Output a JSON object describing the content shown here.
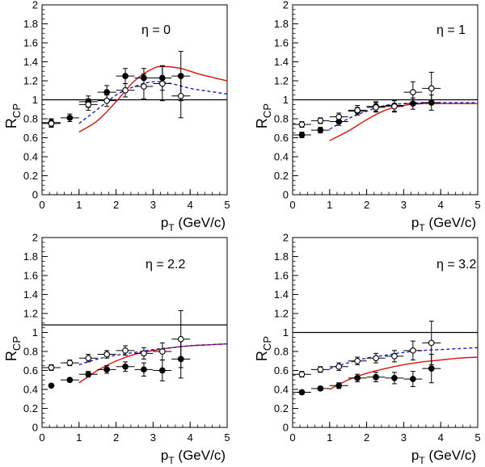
{
  "figure": {
    "ylabel_base": "R",
    "ylabel_sub": "CP",
    "xlabel_base": "p",
    "xlabel_sub": "T",
    "xlabel_unit": " (GeV/c)"
  },
  "colors": {
    "red_curve": "#e01010",
    "blue_curve": "#1a1ad6",
    "axis": "#000000"
  },
  "chart_data": [
    {
      "type": "scatter",
      "title": "η = 0",
      "xlim": [
        0,
        5
      ],
      "ylim": [
        0,
        2
      ],
      "x_ticks": [
        "0",
        "1",
        "2",
        "3",
        "4",
        "5"
      ],
      "y_ticks": [
        "0",
        "0.2",
        "0.4",
        "0.6",
        "0.8",
        "1",
        "1.2",
        "1.4",
        "1.6",
        "1.8",
        "2"
      ],
      "reference_line": 1.0,
      "series": [
        {
          "marker": "filled",
          "points": [
            {
              "x": 0.25,
              "y": 0.76,
              "xerr": 0.25,
              "yerr": 0.04
            },
            {
              "x": 0.75,
              "y": 0.81,
              "xerr": 0.25,
              "yerr": 0.04
            },
            {
              "x": 1.25,
              "y": 0.98,
              "xerr": 0.25,
              "yerr": 0.06
            },
            {
              "x": 1.75,
              "y": 1.08,
              "xerr": 0.25,
              "yerr": 0.07
            },
            {
              "x": 2.25,
              "y": 1.25,
              "xerr": 0.25,
              "yerr": 0.08
            },
            {
              "x": 2.75,
              "y": 1.23,
              "xerr": 0.25,
              "yerr": 0.1
            },
            {
              "x": 3.25,
              "y": 1.23,
              "xerr": 0.25,
              "yerr": 0.13
            },
            {
              "x": 3.75,
              "y": 1.25,
              "xerr": 0.25,
              "yerr": 0.26
            }
          ]
        },
        {
          "marker": "open",
          "points": [
            {
              "x": 0.25,
              "y": 0.75,
              "xerr": 0.25,
              "yerr": 0.04
            },
            {
              "x": 1.25,
              "y": 0.95,
              "xerr": 0.25,
              "yerr": 0.06
            },
            {
              "x": 1.75,
              "y": 0.99,
              "xerr": 0.25,
              "yerr": 0.06
            },
            {
              "x": 2.25,
              "y": 1.1,
              "xerr": 0.25,
              "yerr": 0.07
            },
            {
              "x": 2.75,
              "y": 1.14,
              "xerr": 0.25,
              "yerr": 0.13
            },
            {
              "x": 3.25,
              "y": 1.17,
              "xerr": 0.25,
              "yerr": 0.18
            },
            {
              "x": 3.75,
              "y": 1.04,
              "xerr": 0.25,
              "yerr": 0.23
            }
          ]
        }
      ],
      "curves": [
        {
          "color": "red",
          "style": "solid",
          "points": [
            [
              1,
              0.66
            ],
            [
              1.5,
              0.78
            ],
            [
              2,
              0.98
            ],
            [
              2.5,
              1.2
            ],
            [
              3,
              1.33
            ],
            [
              3.3,
              1.35
            ],
            [
              3.75,
              1.33
            ],
            [
              4.25,
              1.27
            ],
            [
              5,
              1.2
            ]
          ]
        },
        {
          "color": "blue",
          "style": "dashed",
          "points": [
            [
              1,
              0.75
            ],
            [
              1.5,
              0.9
            ],
            [
              2,
              1.05
            ],
            [
              2.5,
              1.14
            ],
            [
              3,
              1.19
            ],
            [
              3.5,
              1.17
            ],
            [
              4,
              1.12
            ],
            [
              4.5,
              1.09
            ],
            [
              5,
              1.06
            ]
          ]
        }
      ]
    },
    {
      "type": "scatter",
      "title": "η = 1",
      "xlim": [
        0,
        5
      ],
      "ylim": [
        0,
        2
      ],
      "x_ticks": [
        "0",
        "1",
        "2",
        "3",
        "4",
        "5"
      ],
      "y_ticks": [
        "0",
        "0.2",
        "0.4",
        "0.6",
        "0.8",
        "1",
        "1.2",
        "1.4",
        "1.6",
        "1.8",
        "2"
      ],
      "reference_line": 1.0,
      "series": [
        {
          "marker": "filled",
          "points": [
            {
              "x": 0.25,
              "y": 0.63,
              "xerr": 0.25,
              "yerr": 0.03
            },
            {
              "x": 0.75,
              "y": 0.68,
              "xerr": 0.25,
              "yerr": 0.03
            },
            {
              "x": 1.25,
              "y": 0.77,
              "xerr": 0.25,
              "yerr": 0.04
            },
            {
              "x": 1.75,
              "y": 0.88,
              "xerr": 0.25,
              "yerr": 0.04
            },
            {
              "x": 2.25,
              "y": 0.93,
              "xerr": 0.25,
              "yerr": 0.05
            },
            {
              "x": 2.75,
              "y": 0.94,
              "xerr": 0.25,
              "yerr": 0.06
            },
            {
              "x": 3.25,
              "y": 0.96,
              "xerr": 0.25,
              "yerr": 0.06
            },
            {
              "x": 3.75,
              "y": 0.97,
              "xerr": 0.25,
              "yerr": 0.08
            }
          ]
        },
        {
          "marker": "open",
          "points": [
            {
              "x": 0.25,
              "y": 0.74,
              "xerr": 0.25,
              "yerr": 0.03
            },
            {
              "x": 0.75,
              "y": 0.78,
              "xerr": 0.25,
              "yerr": 0.03
            },
            {
              "x": 1.25,
              "y": 0.82,
              "xerr": 0.25,
              "yerr": 0.04
            },
            {
              "x": 1.75,
              "y": 0.89,
              "xerr": 0.25,
              "yerr": 0.05
            },
            {
              "x": 2.25,
              "y": 0.92,
              "xerr": 0.25,
              "yerr": 0.05
            },
            {
              "x": 2.75,
              "y": 0.93,
              "xerr": 0.25,
              "yerr": 0.06
            },
            {
              "x": 3.25,
              "y": 1.08,
              "xerr": 0.25,
              "yerr": 0.11
            },
            {
              "x": 3.75,
              "y": 1.12,
              "xerr": 0.25,
              "yerr": 0.17
            }
          ]
        }
      ],
      "curves": [
        {
          "color": "red",
          "style": "solid",
          "points": [
            [
              1,
              0.57
            ],
            [
              1.5,
              0.67
            ],
            [
              2,
              0.79
            ],
            [
              2.5,
              0.89
            ],
            [
              3,
              0.94
            ],
            [
              3.5,
              0.96
            ],
            [
              4,
              0.96
            ],
            [
              5,
              0.96
            ]
          ]
        },
        {
          "color": "blue",
          "style": "dashed",
          "points": [
            [
              1,
              0.69
            ],
            [
              1.5,
              0.8
            ],
            [
              2,
              0.88
            ],
            [
              2.5,
              0.94
            ],
            [
              3,
              0.96
            ],
            [
              3.5,
              0.97
            ],
            [
              4,
              0.97
            ],
            [
              5,
              0.97
            ]
          ]
        }
      ]
    },
    {
      "type": "scatter",
      "title": "η = 2.2",
      "xlim": [
        0,
        5
      ],
      "ylim": [
        0,
        2
      ],
      "x_ticks": [
        "0",
        "1",
        "2",
        "3",
        "4",
        "5"
      ],
      "y_ticks": [
        "0",
        "0.2",
        "0.4",
        "0.6",
        "0.8",
        "1",
        "1.2",
        "1.4",
        "1.6",
        "1.8",
        "2"
      ],
      "reference_line": 1.08,
      "series": [
        {
          "marker": "filled",
          "points": [
            {
              "x": 0.25,
              "y": 0.44,
              "xerr": 0,
              "yerr": 0
            },
            {
              "x": 0.75,
              "y": 0.5,
              "xerr": 0.25,
              "yerr": 0.02
            },
            {
              "x": 1.25,
              "y": 0.56,
              "xerr": 0.25,
              "yerr": 0.03
            },
            {
              "x": 1.75,
              "y": 0.61,
              "xerr": 0.25,
              "yerr": 0.04
            },
            {
              "x": 2.25,
              "y": 0.64,
              "xerr": 0.25,
              "yerr": 0.05
            },
            {
              "x": 2.75,
              "y": 0.61,
              "xerr": 0.25,
              "yerr": 0.07
            },
            {
              "x": 3.25,
              "y": 0.6,
              "xerr": 0.25,
              "yerr": 0.11
            },
            {
              "x": 3.75,
              "y": 0.72,
              "xerr": 0.25,
              "yerr": 0.2
            }
          ]
        },
        {
          "marker": "open",
          "points": [
            {
              "x": 0.25,
              "y": 0.63,
              "xerr": 0.25,
              "yerr": 0.03
            },
            {
              "x": 0.75,
              "y": 0.68,
              "xerr": 0.25,
              "yerr": 0.03
            },
            {
              "x": 1.25,
              "y": 0.73,
              "xerr": 0.25,
              "yerr": 0.04
            },
            {
              "x": 1.75,
              "y": 0.77,
              "xerr": 0.25,
              "yerr": 0.04
            },
            {
              "x": 2.25,
              "y": 0.81,
              "xerr": 0.25,
              "yerr": 0.05
            },
            {
              "x": 2.75,
              "y": 0.78,
              "xerr": 0.25,
              "yerr": 0.06
            },
            {
              "x": 3.25,
              "y": 0.8,
              "xerr": 0.25,
              "yerr": 0.09
            },
            {
              "x": 3.75,
              "y": 0.93,
              "xerr": 0.25,
              "yerr": 0.3
            }
          ]
        }
      ],
      "curves": [
        {
          "color": "red",
          "style": "solid",
          "points": [
            [
              1,
              0.47
            ],
            [
              1.5,
              0.6
            ],
            [
              2,
              0.7
            ],
            [
              2.5,
              0.77
            ],
            [
              3,
              0.81
            ],
            [
              3.5,
              0.84
            ],
            [
              4,
              0.86
            ],
            [
              4.5,
              0.87
            ],
            [
              5,
              0.88
            ]
          ]
        },
        {
          "color": "blue",
          "style": "dashed",
          "points": [
            [
              1,
              0.66
            ],
            [
              1.5,
              0.72
            ],
            [
              2,
              0.76
            ],
            [
              2.5,
              0.79
            ],
            [
              3,
              0.82
            ],
            [
              3.5,
              0.84
            ],
            [
              4,
              0.86
            ],
            [
              4.5,
              0.87
            ],
            [
              5,
              0.88
            ]
          ]
        }
      ]
    },
    {
      "type": "scatter",
      "title": "η = 3.2",
      "xlim": [
        0,
        5
      ],
      "ylim": [
        0,
        2
      ],
      "x_ticks": [
        "0",
        "1",
        "2",
        "3",
        "4",
        "5"
      ],
      "y_ticks": [
        "0",
        "0.2",
        "0.4",
        "0.6",
        "0.8",
        "1",
        "1.2",
        "1.4",
        "1.6",
        "1.8",
        "2"
      ],
      "reference_line": 1.0,
      "series": [
        {
          "marker": "filled",
          "points": [
            {
              "x": 0.25,
              "y": 0.37,
              "xerr": 0.25,
              "yerr": 0.02
            },
            {
              "x": 0.75,
              "y": 0.41,
              "xerr": 0.25,
              "yerr": 0.02
            },
            {
              "x": 1.25,
              "y": 0.44,
              "xerr": 0.25,
              "yerr": 0.03
            },
            {
              "x": 1.75,
              "y": 0.52,
              "xerr": 0.25,
              "yerr": 0.04
            },
            {
              "x": 2.25,
              "y": 0.53,
              "xerr": 0.25,
              "yerr": 0.05
            },
            {
              "x": 2.75,
              "y": 0.52,
              "xerr": 0.25,
              "yerr": 0.06
            },
            {
              "x": 3.25,
              "y": 0.51,
              "xerr": 0.25,
              "yerr": 0.08
            },
            {
              "x": 3.75,
              "y": 0.62,
              "xerr": 0.25,
              "yerr": 0.15
            }
          ]
        },
        {
          "marker": "open",
          "points": [
            {
              "x": 0.25,
              "y": 0.56,
              "xerr": 0.25,
              "yerr": 0.03
            },
            {
              "x": 0.75,
              "y": 0.61,
              "xerr": 0.25,
              "yerr": 0.03
            },
            {
              "x": 1.25,
              "y": 0.64,
              "xerr": 0.25,
              "yerr": 0.04
            },
            {
              "x": 1.75,
              "y": 0.7,
              "xerr": 0.25,
              "yerr": 0.04
            },
            {
              "x": 2.25,
              "y": 0.73,
              "xerr": 0.25,
              "yerr": 0.05
            },
            {
              "x": 2.75,
              "y": 0.75,
              "xerr": 0.25,
              "yerr": 0.06
            },
            {
              "x": 3.25,
              "y": 0.81,
              "xerr": 0.25,
              "yerr": 0.1
            },
            {
              "x": 3.75,
              "y": 0.89,
              "xerr": 0.25,
              "yerr": 0.23
            }
          ]
        }
      ],
      "curves": [
        {
          "color": "red",
          "style": "solid",
          "points": [
            [
              1,
              0.4
            ],
            [
              1.5,
              0.5
            ],
            [
              2,
              0.57
            ],
            [
              2.5,
              0.62
            ],
            [
              3,
              0.66
            ],
            [
              3.5,
              0.69
            ],
            [
              4,
              0.71
            ],
            [
              4.5,
              0.73
            ],
            [
              5,
              0.74
            ]
          ]
        },
        {
          "color": "blue",
          "style": "dashed",
          "points": [
            [
              1,
              0.62
            ],
            [
              1.5,
              0.68
            ],
            [
              2,
              0.73
            ],
            [
              2.5,
              0.76
            ],
            [
              3,
              0.79
            ],
            [
              3.5,
              0.81
            ],
            [
              4,
              0.82
            ],
            [
              4.5,
              0.83
            ],
            [
              5,
              0.84
            ]
          ]
        }
      ]
    }
  ]
}
